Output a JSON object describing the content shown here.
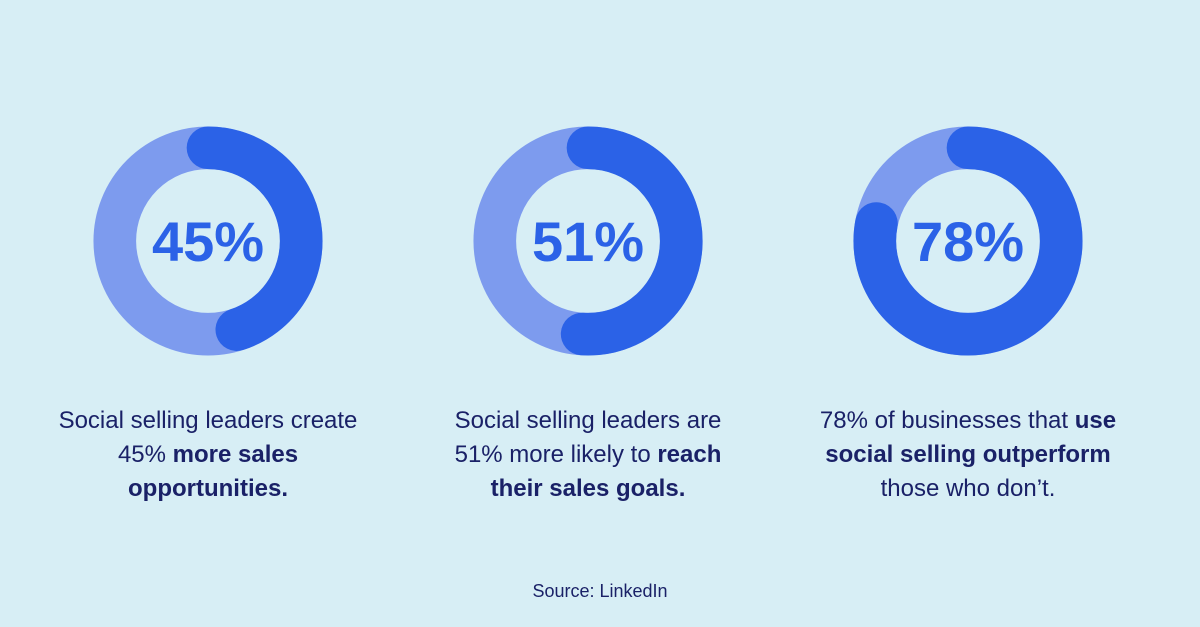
{
  "colors": {
    "background": "#d7eef5",
    "donut_track": "#7d9bee",
    "donut_fill": "#2b62e7",
    "percent_text": "#2b62e7",
    "caption_text": "#1a2167"
  },
  "chart_data": [
    {
      "type": "pie",
      "variant": "donut",
      "percent": 45,
      "center_label": "45%",
      "start_angle_deg": 0,
      "direction": "clockwise",
      "caption_segments": [
        {
          "text": "Social selling leaders create 45% ",
          "bold": false
        },
        {
          "text": "more sales opportunities.",
          "bold": true
        }
      ]
    },
    {
      "type": "pie",
      "variant": "donut",
      "percent": 51,
      "center_label": "51%",
      "start_angle_deg": 0,
      "direction": "clockwise",
      "caption_segments": [
        {
          "text": "Social selling leaders are 51% more likely to ",
          "bold": false
        },
        {
          "text": "reach their sales goals.",
          "bold": true
        }
      ]
    },
    {
      "type": "pie",
      "variant": "donut",
      "percent": 78,
      "center_label": "78%",
      "start_angle_deg": 0,
      "direction": "clockwise",
      "caption_segments": [
        {
          "text": "78% of businesses that ",
          "bold": false
        },
        {
          "text": "use social selling outperform",
          "bold": true
        },
        {
          "text": " those who don’t.",
          "bold": false
        }
      ]
    }
  ],
  "source": {
    "label": "Source: LinkedIn"
  }
}
